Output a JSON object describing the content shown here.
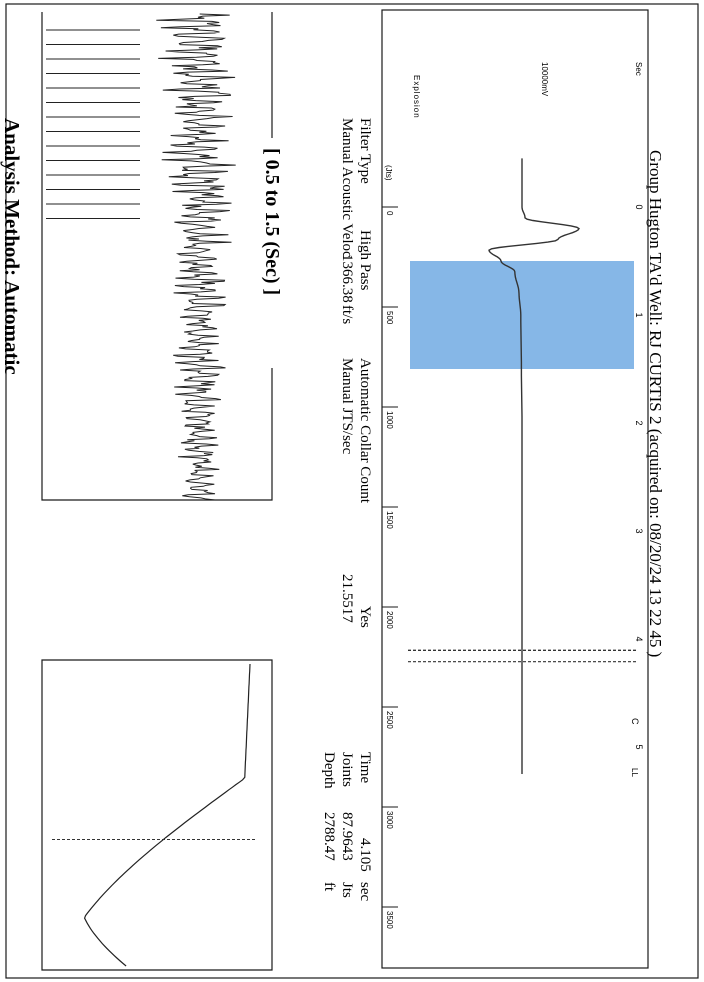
{
  "header": {
    "title": "Group Hugton TA'd   Well: RJ CURTIS 2 (acquired on: 08/20/24 13 22 45 )"
  },
  "trace_panel": {
    "scale_label": "10000mV",
    "side_label": "Explosion",
    "time_unit_label": "Sec",
    "joints_unit_label": "(Jts)",
    "marker_labels": [
      "C",
      "LL"
    ]
  },
  "info": {
    "rows": [
      {
        "label": "Filter Type",
        "value": "High Pass"
      },
      {
        "label": "Manual Acoustic Veloc",
        "value": "1366.38",
        "unit": "ft/s"
      },
      {
        "label": "Automatic Collar Count",
        "value": "Yes"
      },
      {
        "label": "Manual JTS/sec",
        "value": "21.5517"
      },
      {
        "label": "Time",
        "value": "4.105",
        "unit": "sec"
      },
      {
        "label": "Joints",
        "value": "87.9643",
        "unit": "Jts"
      },
      {
        "label": "Depth",
        "value": "2788.47",
        "unit": "ft"
      }
    ]
  },
  "collar_panel": {
    "range_label": "[ 0.5  to  1.5 (Sec) ]",
    "method_label": "Analysis Method:   Automatic"
  },
  "colors": {
    "highlight": "#7fb3e6",
    "trace": "#333333",
    "frame": "#1a1a1a"
  },
  "chart_data": [
    {
      "type": "line",
      "name": "acoustic-trace",
      "x_axis_ticks": [
        0,
        1,
        2,
        3,
        4,
        5
      ],
      "xlim": [
        -0.55,
        5.3
      ],
      "joints_ticks": [
        0,
        500,
        1000,
        1500,
        2000,
        2500,
        3000,
        3500
      ],
      "highlight_range_sec": [
        0.5,
        1.5
      ],
      "markers_sec": [
        4.105,
        4.21
      ],
      "x": [
        0,
        0.1,
        0.2,
        0.3,
        0.4,
        0.5,
        0.6,
        0.8,
        1.0,
        1.5,
        2.0,
        3.0,
        4.0,
        5.0
      ],
      "y": [
        0,
        0.05,
        0.95,
        0.6,
        -0.55,
        -0.35,
        -0.12,
        -0.05,
        -0.02,
        -0.01,
        0,
        0,
        0,
        0
      ]
    },
    {
      "type": "line",
      "name": "collar-signal",
      "window_sec": [
        0.5,
        1.5
      ],
      "peak_count": 14
    },
    {
      "type": "line",
      "name": "frequency-response",
      "marker_position": 0.27
    }
  ]
}
